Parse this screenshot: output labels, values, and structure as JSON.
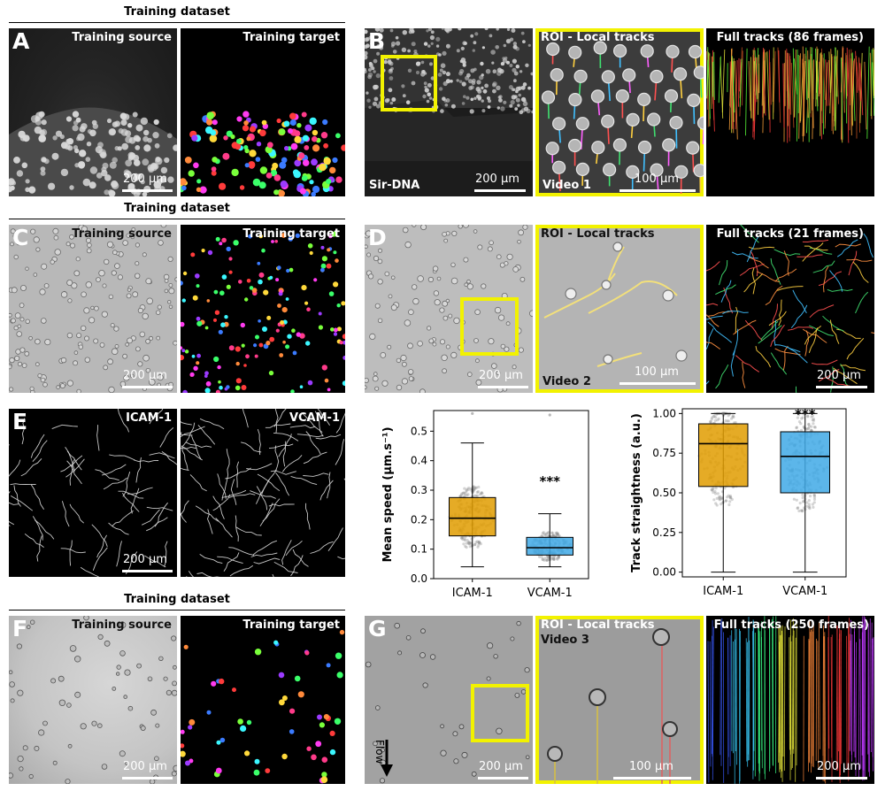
{
  "sections": {
    "training_dataset_1": "Training dataset",
    "training_dataset_2": "Training dataset",
    "training_dataset_3": "Training dataset"
  },
  "panels": {
    "A": {
      "letter": "A",
      "source_title": "Training source",
      "target_title": "Training target",
      "scalebar": "200 µm"
    },
    "B": {
      "letter": "B",
      "stain": "Sir-DNA",
      "scalebar1": "200 µm",
      "roi_title": "ROI - Local tracks",
      "video": "Video 1",
      "scalebar2": "100 µm",
      "full_title": "Full tracks (86 frames)"
    },
    "C": {
      "letter": "C",
      "source_title": "Training source",
      "target_title": "Training target",
      "scalebar": "200 µm"
    },
    "D": {
      "letter": "D",
      "scalebar1": "200 µm",
      "roi_title": "ROI - Local tracks",
      "video": "Video 2",
      "scalebar2": "100 µm",
      "full_title": "Full tracks (21 frames)",
      "scalebar3": "200 µm"
    },
    "E": {
      "letter": "E",
      "left_title": "ICAM-1",
      "right_title": "VCAM-1",
      "scalebar": "200 µm"
    },
    "F": {
      "letter": "F",
      "source_title": "Training source",
      "target_title": "Training target",
      "scalebar": "200 µm"
    },
    "G": {
      "letter": "G",
      "flow_label": "Flow",
      "scalebar1": "200 µm",
      "roi_title": "ROI - Local tracks",
      "video": "Video 3",
      "scalebar2": "100 µm",
      "full_title": "Full tracks (250 frames)",
      "scalebar3": "200 µm"
    }
  },
  "chart_data": [
    {
      "type": "box",
      "ylabel": "Mean speed (µm.s⁻¹)",
      "xlabel": "",
      "categories": [
        "ICAM-1",
        "VCAM-1"
      ],
      "ylim": [
        0,
        0.57
      ],
      "yticks": [
        "0.0",
        "0.1",
        "0.2",
        "0.3",
        "0.4",
        "0.5"
      ],
      "ytick_values": [
        0,
        0.1,
        0.2,
        0.3,
        0.4,
        0.5
      ],
      "colors": [
        "#e09c00",
        "#3fa9e6"
      ],
      "boxes": [
        {
          "name": "ICAM-1",
          "whisker_low": 0.04,
          "q1": 0.145,
          "median": 0.205,
          "q3": 0.275,
          "whisker_high": 0.46,
          "max": 0.56
        },
        {
          "name": "VCAM-1",
          "whisker_low": 0.04,
          "q1": 0.08,
          "median": 0.105,
          "q3": 0.14,
          "whisker_high": 0.22,
          "max": 0.555
        }
      ],
      "annotation": "***"
    },
    {
      "type": "box",
      "ylabel": "Track straightness (a.u.)",
      "xlabel": "",
      "categories": [
        "ICAM-1",
        "VCAM-1"
      ],
      "ylim": [
        -0.03,
        1.03
      ],
      "yticks": [
        "0.00",
        "0.25",
        "0.50",
        "0.75",
        "1.00"
      ],
      "ytick_values": [
        0,
        0.25,
        0.5,
        0.75,
        1.0
      ],
      "colors": [
        "#e09c00",
        "#3fa9e6"
      ],
      "boxes": [
        {
          "name": "ICAM-1",
          "whisker_low": 0.0,
          "q1": 0.54,
          "median": 0.81,
          "q3": 0.935,
          "whisker_high": 1.0,
          "max": 1.0
        },
        {
          "name": "VCAM-1",
          "whisker_low": 0.0,
          "q1": 0.5,
          "median": 0.73,
          "q3": 0.885,
          "whisker_high": 1.0,
          "max": 1.0
        }
      ],
      "annotation": "***"
    }
  ]
}
